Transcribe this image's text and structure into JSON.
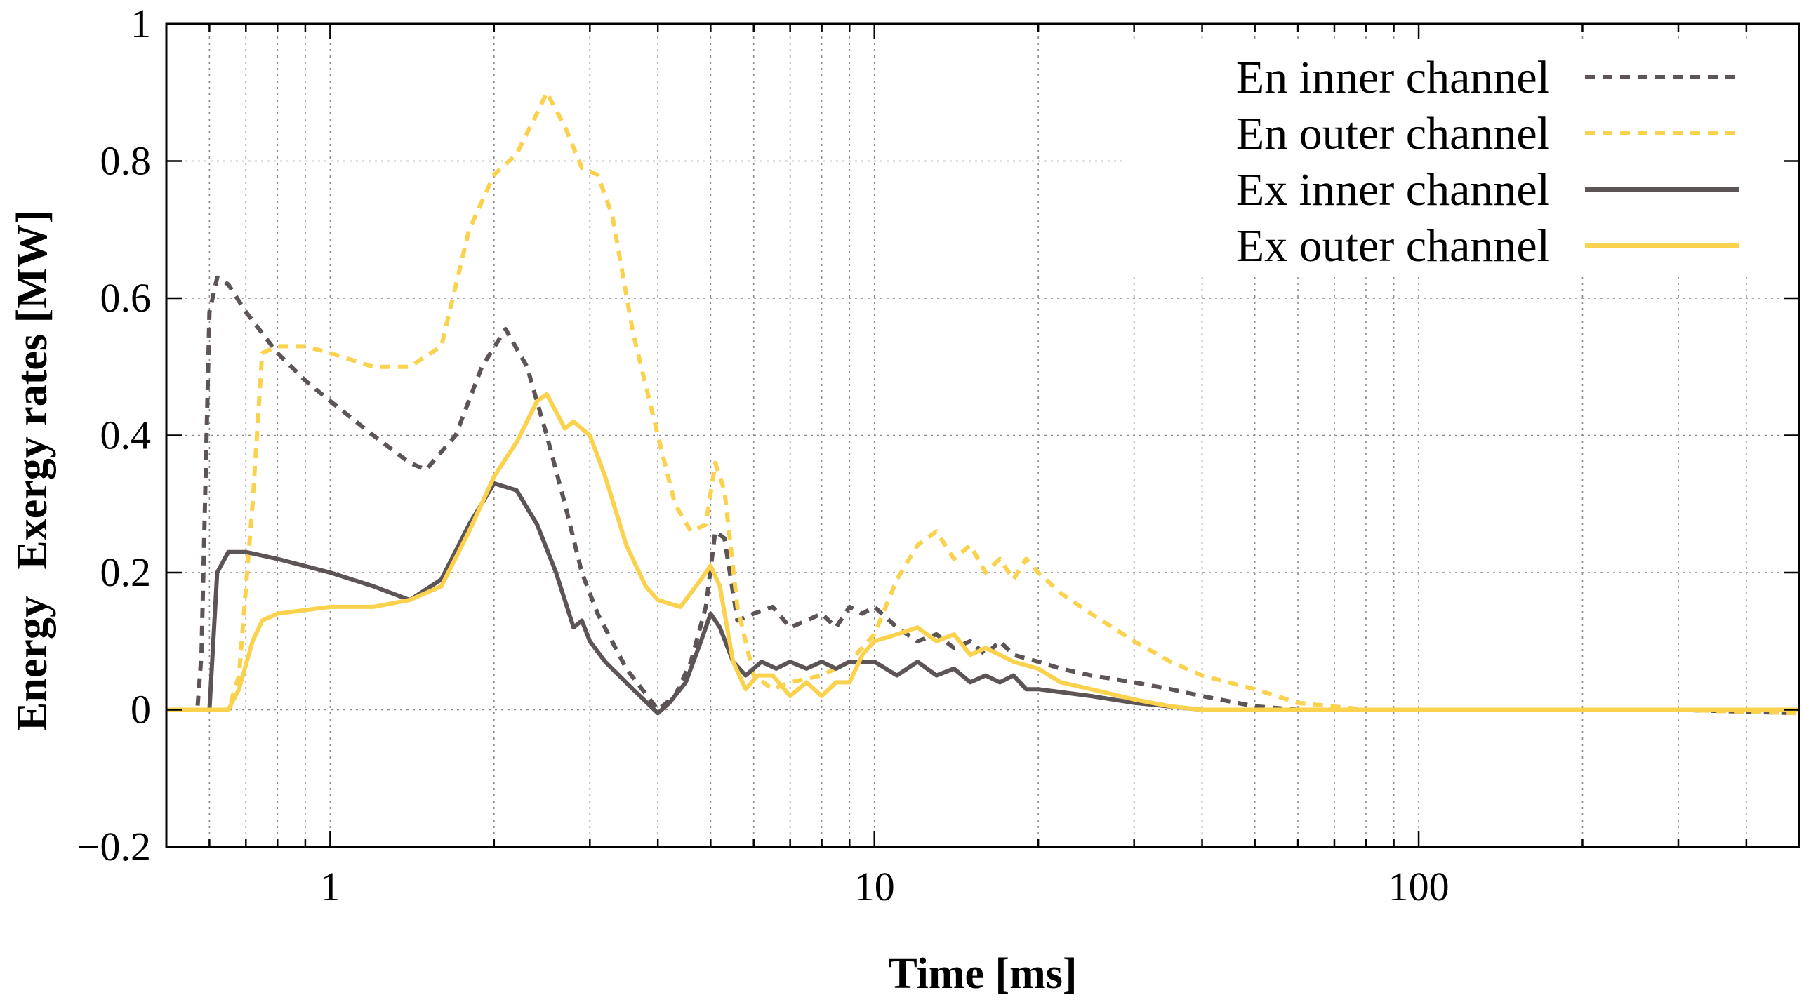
{
  "chart_data": {
    "type": "line",
    "title": "",
    "xlabel": "Time [ms]",
    "ylabel_parts": [
      "Energy",
      "Exergy rates [MW]"
    ],
    "xscale": "log",
    "xlim": [
      0.5,
      500
    ],
    "ylim": [
      -0.2,
      1.0
    ],
    "grid": true,
    "legend_position": "top-right",
    "x_ticks": [
      1,
      10,
      100
    ],
    "x_tick_labels": [
      "1",
      "10",
      "100"
    ],
    "y_ticks": [
      -0.2,
      0,
      0.2,
      0.4,
      0.6,
      0.8,
      1.0
    ],
    "y_tick_labels": [
      "−0.2",
      "0",
      "0.2",
      "0.4",
      "0.6",
      "0.8",
      "1"
    ],
    "series": [
      {
        "name": "En inner channel",
        "color": "#5d5555",
        "dash": "dotted",
        "x": [
          0.5,
          0.57,
          0.58,
          0.6,
          0.62,
          0.65,
          0.7,
          0.8,
          0.9,
          1.0,
          1.2,
          1.4,
          1.5,
          1.7,
          1.9,
          2.1,
          2.3,
          2.5,
          2.7,
          2.9,
          3.1,
          3.5,
          4.0,
          4.3,
          4.6,
          4.9,
          5.1,
          5.3,
          5.6,
          6.0,
          6.5,
          7.0,
          7.5,
          8.0,
          8.5,
          9.0,
          9.5,
          10,
          11,
          12,
          13,
          14,
          15,
          16,
          17,
          18,
          20,
          22,
          25,
          30,
          35,
          40,
          50,
          60,
          80,
          100,
          200,
          300,
          500
        ],
        "values": [
          0.0,
          0.0,
          0.08,
          0.58,
          0.63,
          0.62,
          0.58,
          0.52,
          0.48,
          0.45,
          0.4,
          0.36,
          0.35,
          0.4,
          0.5,
          0.555,
          0.5,
          0.4,
          0.3,
          0.2,
          0.14,
          0.06,
          0.0,
          0.02,
          0.07,
          0.15,
          0.26,
          0.25,
          0.13,
          0.14,
          0.15,
          0.12,
          0.13,
          0.14,
          0.12,
          0.15,
          0.14,
          0.15,
          0.12,
          0.1,
          0.11,
          0.09,
          0.1,
          0.08,
          0.1,
          0.08,
          0.07,
          0.06,
          0.05,
          0.04,
          0.03,
          0.02,
          0.005,
          0.0,
          0.0,
          0.0,
          0.0,
          0.0,
          -0.005
        ]
      },
      {
        "name": "En outer channel",
        "color": "#fbd24e",
        "dash": "dotted",
        "x": [
          0.5,
          0.65,
          0.68,
          0.72,
          0.75,
          0.8,
          0.9,
          1.0,
          1.2,
          1.4,
          1.6,
          1.8,
          2.0,
          2.2,
          2.4,
          2.5,
          2.7,
          2.9,
          3.1,
          3.3,
          3.6,
          4.0,
          4.3,
          4.6,
          4.9,
          5.1,
          5.3,
          5.6,
          6.0,
          6.5,
          7.0,
          8.0,
          9.0,
          10,
          11,
          12,
          13,
          14,
          15,
          16,
          17,
          18,
          19,
          20,
          22,
          25,
          30,
          35,
          40,
          50,
          60,
          80,
          100,
          200,
          300,
          500
        ],
        "values": [
          0.0,
          0.0,
          0.05,
          0.3,
          0.52,
          0.53,
          0.53,
          0.52,
          0.5,
          0.5,
          0.53,
          0.7,
          0.78,
          0.81,
          0.87,
          0.9,
          0.85,
          0.79,
          0.78,
          0.72,
          0.55,
          0.4,
          0.3,
          0.26,
          0.27,
          0.36,
          0.32,
          0.15,
          0.05,
          0.03,
          0.04,
          0.05,
          0.07,
          0.11,
          0.19,
          0.24,
          0.26,
          0.22,
          0.24,
          0.2,
          0.22,
          0.19,
          0.22,
          0.2,
          0.17,
          0.14,
          0.1,
          0.07,
          0.05,
          0.03,
          0.01,
          0.0,
          0.0,
          0.0,
          0.0,
          -0.005
        ]
      },
      {
        "name": "Ex inner channel",
        "color": "#5d5555",
        "dash": "solid",
        "x": [
          0.5,
          0.6,
          0.62,
          0.65,
          0.7,
          0.8,
          1.0,
          1.2,
          1.4,
          1.6,
          1.8,
          2.0,
          2.2,
          2.4,
          2.6,
          2.8,
          2.9,
          3.0,
          3.2,
          3.6,
          4.0,
          4.2,
          4.5,
          4.8,
          5.0,
          5.2,
          5.5,
          5.8,
          6.2,
          6.6,
          7.0,
          7.5,
          8.0,
          8.5,
          9.0,
          10,
          11,
          12,
          13,
          14,
          15,
          16,
          17,
          18,
          19,
          20,
          25,
          30,
          40,
          50,
          100,
          500
        ],
        "values": [
          0.0,
          0.0,
          0.2,
          0.23,
          0.23,
          0.22,
          0.2,
          0.18,
          0.16,
          0.19,
          0.27,
          0.33,
          0.32,
          0.27,
          0.2,
          0.12,
          0.13,
          0.1,
          0.07,
          0.03,
          -0.005,
          0.01,
          0.04,
          0.1,
          0.14,
          0.12,
          0.07,
          0.05,
          0.07,
          0.06,
          0.07,
          0.06,
          0.07,
          0.06,
          0.07,
          0.07,
          0.05,
          0.07,
          0.05,
          0.06,
          0.04,
          0.05,
          0.04,
          0.05,
          0.03,
          0.03,
          0.02,
          0.01,
          0.0,
          0.0,
          0.0,
          0.0
        ]
      },
      {
        "name": "Ex outer channel",
        "color": "#fbd24e",
        "dash": "solid",
        "x": [
          0.5,
          0.65,
          0.68,
          0.72,
          0.75,
          0.8,
          1.0,
          1.2,
          1.4,
          1.6,
          1.8,
          2.0,
          2.2,
          2.4,
          2.5,
          2.7,
          2.8,
          3.0,
          3.2,
          3.5,
          3.8,
          4.0,
          4.4,
          4.8,
          5.0,
          5.2,
          5.5,
          5.8,
          6.1,
          6.5,
          7.0,
          7.5,
          8.0,
          8.5,
          9.0,
          9.5,
          10,
          11,
          12,
          13,
          14,
          15,
          16,
          17,
          18,
          20,
          22,
          25,
          30,
          35,
          40,
          60,
          100,
          500
        ],
        "values": [
          0.0,
          0.0,
          0.03,
          0.1,
          0.13,
          0.14,
          0.15,
          0.15,
          0.16,
          0.18,
          0.26,
          0.34,
          0.39,
          0.45,
          0.46,
          0.41,
          0.42,
          0.4,
          0.34,
          0.24,
          0.18,
          0.16,
          0.15,
          0.19,
          0.21,
          0.18,
          0.07,
          0.03,
          0.05,
          0.05,
          0.02,
          0.04,
          0.02,
          0.04,
          0.04,
          0.08,
          0.1,
          0.11,
          0.12,
          0.1,
          0.11,
          0.08,
          0.09,
          0.08,
          0.07,
          0.06,
          0.04,
          0.03,
          0.015,
          0.005,
          0.0,
          0.0,
          0.0,
          0.0
        ]
      }
    ]
  }
}
